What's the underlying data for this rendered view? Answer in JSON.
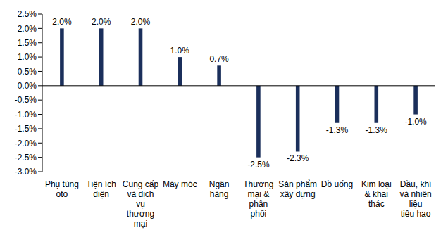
{
  "chart_data": {
    "type": "bar",
    "categories": [
      "Phụ tùng oto",
      "Tiện ích điện",
      "Cung cấp và dịch vụ thương mại",
      "Máy móc",
      "Ngân hàng",
      "Thương mại & phân phối",
      "Sản phẩm xây dựng",
      "Đồ uống",
      "Kim loại & khai thác",
      "Dầu, khí và nhiên liệu tiêu hao"
    ],
    "values": [
      2.0,
      2.0,
      2.0,
      1.0,
      0.7,
      -2.5,
      -2.3,
      -1.3,
      -1.3,
      -1.0
    ],
    "value_labels": [
      "2.0%",
      "2.0%",
      "2.0%",
      "1.0%",
      "0.7%",
      "-2.5%",
      "-2.3%",
      "-1.3%",
      "-1.3%",
      "-1.0%"
    ],
    "color": "#1b2f5b",
    "ylim": [
      -3,
      2.5
    ],
    "yticks": [
      {
        "value": 2.5,
        "label": "2.5%"
      },
      {
        "value": 2.0,
        "label": "2.0%"
      },
      {
        "value": 1.5,
        "label": "1.5%"
      },
      {
        "value": 1.0,
        "label": "1.0%"
      },
      {
        "value": 0.5,
        "label": "0.5%"
      },
      {
        "value": 0,
        "label": "0.0%"
      },
      {
        "value": -0.5,
        "label": "-0.5%"
      },
      {
        "value": -1.0,
        "label": "-1.0%"
      },
      {
        "value": -1.5,
        "label": "-1.5%"
      },
      {
        "value": -2.0,
        "label": "-2.0%"
      },
      {
        "value": -2.5,
        "label": "-2.5%"
      },
      {
        "value": -3.0,
        "label": "-3.0%"
      }
    ],
    "grid": false,
    "data_labels": true
  }
}
